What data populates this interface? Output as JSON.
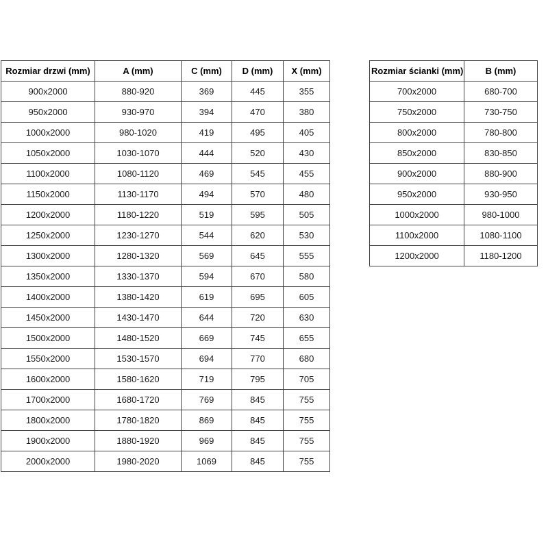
{
  "door_table": {
    "headers": [
      "Rozmiar drzwi (mm)",
      "A (mm)",
      "C (mm)",
      "D (mm)",
      "X (mm)"
    ],
    "rows": [
      [
        "900x2000",
        "880-920",
        "369",
        "445",
        "355"
      ],
      [
        "950x2000",
        "930-970",
        "394",
        "470",
        "380"
      ],
      [
        "1000x2000",
        "980-1020",
        "419",
        "495",
        "405"
      ],
      [
        "1050x2000",
        "1030-1070",
        "444",
        "520",
        "430"
      ],
      [
        "1100x2000",
        "1080-1120",
        "469",
        "545",
        "455"
      ],
      [
        "1150x2000",
        "1130-1170",
        "494",
        "570",
        "480"
      ],
      [
        "1200x2000",
        "1180-1220",
        "519",
        "595",
        "505"
      ],
      [
        "1250x2000",
        "1230-1270",
        "544",
        "620",
        "530"
      ],
      [
        "1300x2000",
        "1280-1320",
        "569",
        "645",
        "555"
      ],
      [
        "1350x2000",
        "1330-1370",
        "594",
        "670",
        "580"
      ],
      [
        "1400x2000",
        "1380-1420",
        "619",
        "695",
        "605"
      ],
      [
        "1450x2000",
        "1430-1470",
        "644",
        "720",
        "630"
      ],
      [
        "1500x2000",
        "1480-1520",
        "669",
        "745",
        "655"
      ],
      [
        "1550x2000",
        "1530-1570",
        "694",
        "770",
        "680"
      ],
      [
        "1600x2000",
        "1580-1620",
        "719",
        "795",
        "705"
      ],
      [
        "1700x2000",
        "1680-1720",
        "769",
        "845",
        "755"
      ],
      [
        "1800x2000",
        "1780-1820",
        "869",
        "845",
        "755"
      ],
      [
        "1900x2000",
        "1880-1920",
        "969",
        "845",
        "755"
      ],
      [
        "2000x2000",
        "1980-2020",
        "1069",
        "845",
        "755"
      ]
    ]
  },
  "wall_table": {
    "headers": [
      "Rozmiar ścianki (mm)",
      "B (mm)"
    ],
    "rows": [
      [
        "700x2000",
        "680-700"
      ],
      [
        "750x2000",
        "730-750"
      ],
      [
        "800x2000",
        "780-800"
      ],
      [
        "850x2000",
        "830-850"
      ],
      [
        "900x2000",
        "880-900"
      ],
      [
        "950x2000",
        "930-950"
      ],
      [
        "1000x2000",
        "980-1000"
      ],
      [
        "1100x2000",
        "1080-1100"
      ],
      [
        "1200x2000",
        "1180-1200"
      ]
    ]
  },
  "colors": {
    "border": "#404040",
    "text": "#1a1a1a",
    "background": "#ffffff"
  }
}
